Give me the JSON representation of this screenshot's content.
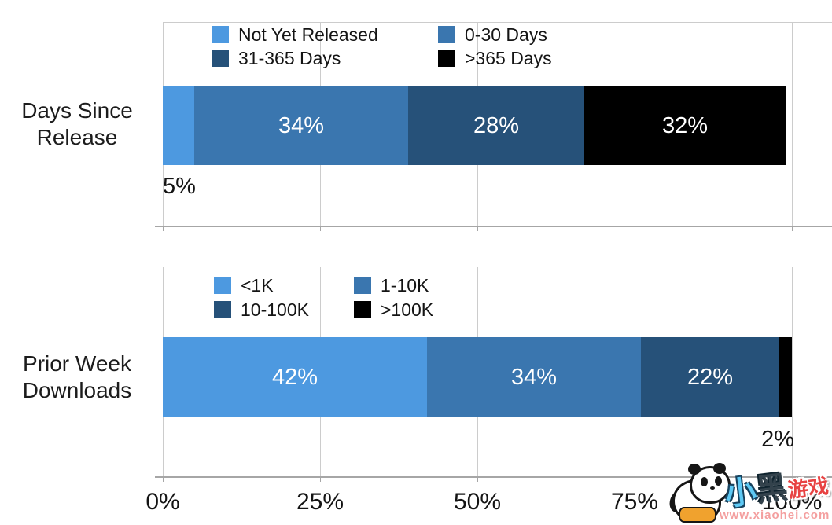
{
  "page": {
    "background": "#ffffff"
  },
  "colors": {
    "light_blue": "#4d99e0",
    "medium_blue": "#3a76af",
    "dark_blue": "#265179",
    "black": "#000000",
    "gridline": "#cccccc",
    "axis_line": "#a6a6a6",
    "text": "#141414",
    "bar_label_text": "#ffffff"
  },
  "x_axis": {
    "tick_labels": [
      "0%",
      "25%",
      "50%",
      "75%",
      "100%"
    ],
    "tick_values": [
      0,
      25,
      50,
      75,
      100
    ]
  },
  "chart_data": [
    {
      "type": "bar",
      "orientation": "horizontal",
      "stacked": true,
      "category": "Days Since Release",
      "category_lines": [
        "Days Since",
        "Release"
      ],
      "xlim": [
        0,
        100
      ],
      "grid": true,
      "legend_position": "top-inside",
      "series": [
        {
          "name": "Not Yet Released",
          "value": 5,
          "percent_label": "5%",
          "color": "#4d99e0",
          "label_placement": "below-bar"
        },
        {
          "name": "0-30 Days",
          "value": 34,
          "percent_label": "34%",
          "color": "#3a76af",
          "label_placement": "inside"
        },
        {
          "name": "31-365 Days",
          "value": 28,
          "percent_label": "28%",
          "color": "#265179",
          "label_placement": "inside"
        },
        {
          "name": ">365 Days",
          "value": 32,
          "percent_label": "32%",
          "color": "#000000",
          "label_placement": "inside"
        }
      ]
    },
    {
      "type": "bar",
      "orientation": "horizontal",
      "stacked": true,
      "category": "Prior Week Downloads",
      "category_lines": [
        "Prior Week",
        "Downloads"
      ],
      "xlim": [
        0,
        100
      ],
      "grid": true,
      "legend_position": "top-inside",
      "series": [
        {
          "name": "<1K",
          "value": 42,
          "percent_label": "42%",
          "color": "#4d99e0",
          "label_placement": "inside"
        },
        {
          "name": "1-10K",
          "value": 34,
          "percent_label": "34%",
          "color": "#3a76af",
          "label_placement": "inside"
        },
        {
          "name": "10-100K",
          "value": 22,
          "percent_label": "22%",
          "color": "#265179",
          "label_placement": "inside"
        },
        {
          "name": ">100K",
          "value": 2,
          "percent_label": "2%",
          "color": "#000000",
          "label_placement": "below-bar"
        }
      ]
    }
  ],
  "watermark": {
    "panda_icon": "panda-icon",
    "brand_char_1": "小",
    "brand_char_2": "黑",
    "brand_suffix": "游戏",
    "url": "www.xiaohei.com"
  }
}
